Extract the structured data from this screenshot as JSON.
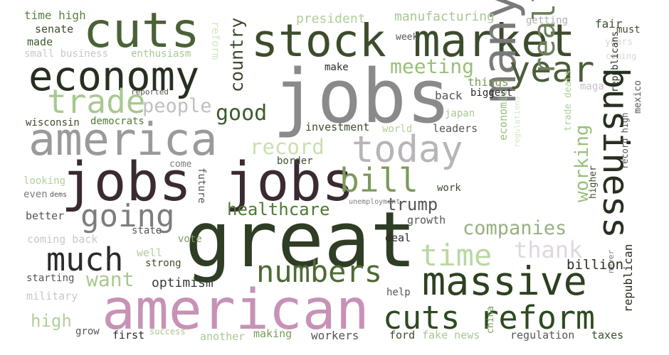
{
  "words": [
    {
      "text": "jobs",
      "color": "#8a8a8a"
    },
    {
      "text": "great",
      "color": "#2f3d24"
    },
    {
      "text": "american",
      "color": "#c792b5"
    },
    {
      "text": "jobs jobs",
      "color": "#3a2a32"
    },
    {
      "text": "stock market",
      "color": "#3c4c2c"
    },
    {
      "text": "america",
      "color": "#9a9a9a"
    },
    {
      "text": "cuts",
      "color": "#4a6236"
    },
    {
      "text": "economy",
      "color": "#263020"
    },
    {
      "text": "many",
      "color": "#7a7a7a"
    },
    {
      "text": "massive",
      "color": "#2d4120"
    },
    {
      "text": "today",
      "color": "#b8b4b8"
    },
    {
      "text": "numbers",
      "color": "#4d6a35"
    },
    {
      "text": "year",
      "color": "#4b5e3a"
    },
    {
      "text": "business",
      "color": "#263020"
    },
    {
      "text": "trade",
      "color": "#a8c890"
    },
    {
      "text": "cuts reform",
      "color": "#2d4a1f"
    },
    {
      "text": "bill",
      "color": "#7a9a5c"
    },
    {
      "text": "really",
      "color": "#6b7f5a"
    },
    {
      "text": "much",
      "color": "#2a2a2a"
    },
    {
      "text": "going",
      "color": "#7d7d7d"
    },
    {
      "text": "time",
      "color": "#b8d8a0"
    },
    {
      "text": "thank",
      "color": "#e0d8e0"
    },
    {
      "text": "country",
      "color": "#3c4c2c"
    },
    {
      "text": "good",
      "color": "#3c5c2c"
    },
    {
      "text": "people",
      "color": "#c0c0c0"
    },
    {
      "text": "meeting",
      "color": "#98c078"
    },
    {
      "text": "record",
      "color": "#c8e0b0"
    },
    {
      "text": "working",
      "color": "#98c078"
    },
    {
      "text": "healthcare",
      "color": "#4d7a30"
    },
    {
      "text": "trump",
      "color": "#555555"
    },
    {
      "text": "companies",
      "color": "#98b080"
    },
    {
      "text": "want",
      "color": "#a8c890"
    },
    {
      "text": "high",
      "color": "#b0d098"
    },
    {
      "text": "optimism",
      "color": "#3a3a3a"
    },
    {
      "text": "billion",
      "color": "#263020"
    },
    {
      "text": "manufacturing",
      "color": "#a8c890"
    },
    {
      "text": "president",
      "color": "#b0d098"
    },
    {
      "text": "reform",
      "color": "#d0e8c0"
    },
    {
      "text": "time high",
      "color": "#5a8040"
    },
    {
      "text": "senate",
      "color": "#3c4c2c"
    },
    {
      "text": "made",
      "color": "#3c5c2c"
    },
    {
      "text": "small business",
      "color": "#c8c8c8"
    },
    {
      "text": "enthusiasm",
      "color": "#a8c890"
    },
    {
      "text": "week",
      "color": "#555555"
    },
    {
      "text": "getting",
      "color": "#b0b0b0"
    },
    {
      "text": "fair",
      "color": "#3c4c2c"
    },
    {
      "text": "must",
      "color": "#3c4c2c"
    },
    {
      "text": "years",
      "color": "#d8d8d8"
    },
    {
      "text": "coming",
      "color": "#d8d8d8"
    },
    {
      "text": "make",
      "color": "#2a2a2a"
    },
    {
      "text": "things",
      "color": "#7a9a5c"
    },
    {
      "text": "maga",
      "color": "#c8c0c8"
    },
    {
      "text": "biggest",
      "color": "#2a2a2a"
    },
    {
      "text": "back",
      "color": "#555555"
    },
    {
      "text": "reported",
      "color": "#555555"
    },
    {
      "text": "wisconsin",
      "color": "#3c4c2c"
    },
    {
      "text": "democrats",
      "color": "#4d7a30"
    },
    {
      "text": "japan",
      "color": "#a8c890"
    },
    {
      "text": "investment",
      "color": "#3c4c2c"
    },
    {
      "text": "world",
      "color": "#b0d098"
    },
    {
      "text": "leaders",
      "color": "#555555"
    },
    {
      "text": "republicans",
      "color": "#263020"
    },
    {
      "text": "mexico",
      "color": "#555555"
    },
    {
      "text": "economic",
      "color": "#98c078"
    },
    {
      "text": "regulations",
      "color": "#d0e8c0"
    },
    {
      "text": "trade deals",
      "color": "#b0d098"
    },
    {
      "text": "record high",
      "color": "#555555"
    },
    {
      "text": "higher",
      "color": "#3c4c2c"
    },
    {
      "text": "looking",
      "color": "#b0d098"
    },
    {
      "text": "even",
      "color": "#7d7d7d"
    },
    {
      "text": "dems",
      "color": "#555555"
    },
    {
      "text": "come",
      "color": "#7d7d7d"
    },
    {
      "text": "future",
      "color": "#555555"
    },
    {
      "text": "border",
      "color": "#3c4c2c"
    },
    {
      "text": "unemployment",
      "color": "#7d7d7d"
    },
    {
      "text": "work",
      "color": "#3c4c2c"
    },
    {
      "text": "better",
      "color": "#555555"
    },
    {
      "text": "state",
      "color": "#555555"
    },
    {
      "text": "growth",
      "color": "#555555"
    },
    {
      "text": "coming back",
      "color": "#c8c8c8"
    },
    {
      "text": "vote",
      "color": "#7a9a5c"
    },
    {
      "text": "deal",
      "color": "#2a2a2a"
    },
    {
      "text": "well",
      "color": "#b0d098"
    },
    {
      "text": "strong",
      "color": "#3c4c2c"
    },
    {
      "text": "starting",
      "color": "#555555"
    },
    {
      "text": "military",
      "color": "#c8c8c8"
    },
    {
      "text": "help",
      "color": "#555555"
    },
    {
      "text": "never",
      "color": "#7d7d7d"
    },
    {
      "text": "republican",
      "color": "#263020"
    },
    {
      "text": "china",
      "color": "#7a9a5c"
    },
    {
      "text": "grow",
      "color": "#555555"
    },
    {
      "text": "first",
      "color": "#2a2a2a"
    },
    {
      "text": "success",
      "color": "#a8c890"
    },
    {
      "text": "another",
      "color": "#a8c890"
    },
    {
      "text": "making",
      "color": "#7a9a5c"
    },
    {
      "text": "workers",
      "color": "#555555"
    },
    {
      "text": "ford",
      "color": "#3c4c2c"
    },
    {
      "text": "fake news",
      "color": "#a8c890"
    },
    {
      "text": "regulation",
      "color": "#555555"
    },
    {
      "text": "taxes",
      "color": "#3c4c2c"
    }
  ]
}
